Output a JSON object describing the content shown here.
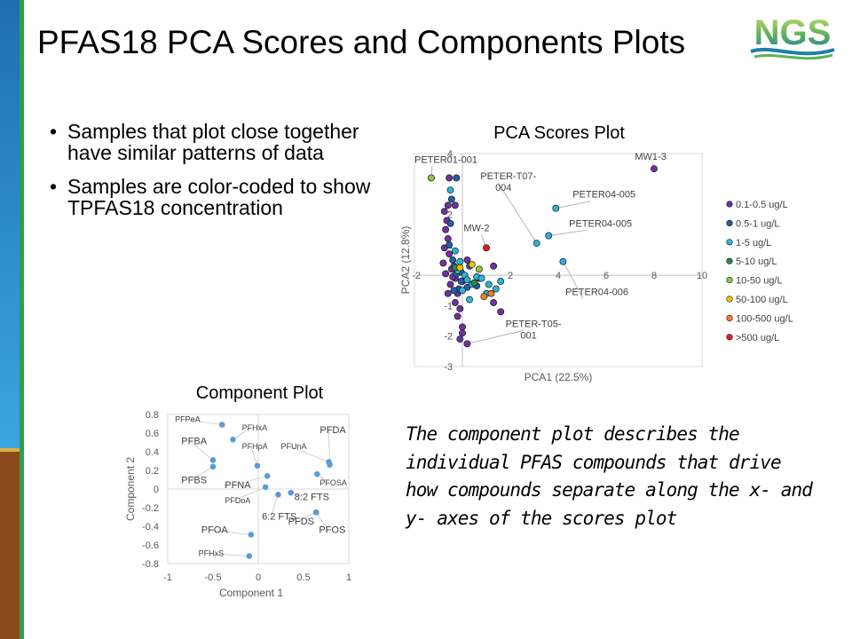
{
  "slide": {
    "title": "PFAS18 PCA Scores and Components Plots",
    "bullets": [
      "Samples that plot close together have similar patterns of data",
      "Samples are color-coded to show TPFAS18 concentration"
    ],
    "logo_text": "NGS",
    "note": "The component plot describes the individual PFAS compounds that drive how compounds separate along the x- and y- axes of the scores plot"
  },
  "chart_data": [
    {
      "type": "scatter",
      "title": "PCA Scores Plot",
      "xlabel": "PCA1 (22.5%)",
      "ylabel": "PCA2 (12.8%)",
      "xlim": [
        -2,
        10
      ],
      "ylim": [
        -3,
        4
      ],
      "xticks": [
        -2,
        2,
        4,
        6,
        8,
        10
      ],
      "yticks": [
        4,
        2,
        1,
        -1,
        -2,
        -3
      ],
      "legend_position": "right",
      "series": [
        {
          "name": "0.1-0.5 ug/L",
          "color": "#7030a0",
          "points": [
            [
              -0.55,
              3.2
            ],
            [
              -0.6,
              2.3
            ],
            [
              -0.3,
              2.3
            ],
            [
              -0.75,
              2.1
            ],
            [
              -0.65,
              1.8
            ],
            [
              -0.7,
              1.5
            ],
            [
              -0.6,
              1.2
            ],
            [
              -0.75,
              0.9
            ],
            [
              -0.55,
              0.7
            ],
            [
              -0.8,
              0.4
            ],
            [
              -0.45,
              0.2
            ],
            [
              -0.7,
              0.05
            ],
            [
              -0.3,
              -0.1
            ],
            [
              -0.5,
              -0.3
            ],
            [
              0.0,
              -0.2
            ],
            [
              -0.2,
              -0.6
            ],
            [
              -0.6,
              -0.6
            ],
            [
              -0.3,
              -0.9
            ],
            [
              -0.1,
              -1.1
            ],
            [
              -0.2,
              -1.35
            ],
            [
              0.0,
              -1.7
            ],
            [
              0.0,
              -1.9
            ],
            [
              -0.1,
              -2.1
            ],
            [
              0.2,
              -2.25
            ],
            [
              1.3,
              -0.9
            ],
            [
              1.6,
              -1.2
            ],
            [
              1.3,
              0.3
            ],
            [
              0.7,
              -0.1
            ],
            [
              8.0,
              3.5
            ],
            [
              -0.4,
              -0.05
            ],
            [
              0.2,
              0.5
            ]
          ]
        },
        {
          "name": "0.5-1 ug/L",
          "color": "#1f5fa8",
          "points": [
            [
              -0.25,
              3.2
            ],
            [
              -0.45,
              2.5
            ],
            [
              -0.5,
              1.7
            ],
            [
              -0.55,
              1.0
            ],
            [
              -0.4,
              0.5
            ],
            [
              -0.35,
              0.3
            ],
            [
              -0.25,
              0.05
            ],
            [
              -0.05,
              0.1
            ],
            [
              -0.15,
              -0.45
            ],
            [
              0.2,
              -0.4
            ],
            [
              0.6,
              -0.35
            ],
            [
              -0.35,
              -0.5
            ],
            [
              0.3,
              0.3
            ],
            [
              -0.05,
              -0.2
            ]
          ]
        },
        {
          "name": "1-5 ug/L",
          "color": "#2db2d8",
          "points": [
            [
              -0.1,
              0.45
            ],
            [
              -0.2,
              0.15
            ],
            [
              0.1,
              0.0
            ],
            [
              0.2,
              -0.15
            ],
            [
              0.4,
              -0.3
            ],
            [
              0.6,
              -0.05
            ],
            [
              0.8,
              -0.1
            ],
            [
              1.1,
              -0.3
            ],
            [
              1.4,
              -0.45
            ],
            [
              1.6,
              -0.2
            ],
            [
              1.0,
              -0.6
            ],
            [
              3.9,
              2.2
            ],
            [
              3.6,
              1.3
            ],
            [
              4.2,
              0.45
            ],
            [
              3.1,
              1.05
            ],
            [
              0.0,
              -0.5
            ],
            [
              0.3,
              -0.8
            ],
            [
              -0.3,
              0.8
            ],
            [
              -0.5,
              2.8
            ]
          ]
        },
        {
          "name": "5-10 ug/L",
          "color": "#2e8b3d",
          "points": [
            [
              -0.3,
              0.25
            ],
            [
              0.5,
              -0.25
            ]
          ]
        },
        {
          "name": "10-50 ug/L",
          "color": "#8cc63f",
          "points": [
            [
              -1.3,
              3.2
            ],
            [
              0.7,
              0.2
            ]
          ]
        },
        {
          "name": "50-100 ug/L",
          "color": "#f2c200",
          "points": [
            [
              0.4,
              0.35
            ],
            [
              -0.1,
              0.25
            ]
          ]
        },
        {
          "name": "100-500 ug/L",
          "color": "#ed7d31",
          "points": [
            [
              0.9,
              -0.7
            ],
            [
              1.2,
              -0.6
            ]
          ]
        },
        {
          "name": ">500 ug/L",
          "color": "#e02020",
          "points": [
            [
              1.0,
              0.9
            ]
          ]
        }
      ],
      "annotations": [
        {
          "text": "PETER01-001",
          "x": -2.0,
          "y": 3.7,
          "px": -1.3,
          "py": 3.2
        },
        {
          "text": "MW1-3",
          "x": 7.2,
          "y": 3.8,
          "px": 8.0,
          "py": 3.5
        },
        {
          "text": "PETER-T07-",
          "text2": "004",
          "x": 0.75,
          "y": 3.15,
          "px": 3.1,
          "py": 1.05
        },
        {
          "text": "PETER04-005",
          "x": 4.6,
          "y": 2.55,
          "px": 3.9,
          "py": 2.2
        },
        {
          "text": "PETER04-005",
          "x": 4.45,
          "y": 1.6,
          "px": 3.6,
          "py": 1.3
        },
        {
          "text": "MW-2",
          "x": 0.05,
          "y": 1.45,
          "px": 1.0,
          "py": 0.9
        },
        {
          "text": "PETER04-006",
          "x": 4.3,
          "y": -0.65,
          "px": 4.2,
          "py": 0.45
        },
        {
          "text": "PETER-T05-",
          "text2": "001",
          "x": 1.8,
          "y": -1.7,
          "px": 0.2,
          "py": -2.25
        }
      ]
    },
    {
      "type": "scatter",
      "title": "Component Plot",
      "xlabel": "Component  1",
      "ylabel": "Component  2",
      "xlim": [
        -1,
        1
      ],
      "ylim": [
        -0.8,
        0.8
      ],
      "xticks": [
        -1,
        -0.5,
        0,
        0.5,
        1
      ],
      "yticks": [
        0.8,
        0.6,
        0.4,
        0.2,
        0,
        -0.2,
        -0.4,
        -0.6,
        -0.8
      ],
      "color": "#5b9bd5",
      "points": [
        {
          "label": "PFPeA",
          "x": -0.4,
          "y": 0.69,
          "lx": -0.92,
          "ly": 0.72
        },
        {
          "label": "PFHxA",
          "x": -0.28,
          "y": 0.53,
          "lx": -0.18,
          "ly": 0.63
        },
        {
          "label": "PFBA",
          "x": -0.5,
          "y": 0.31,
          "lx": -0.85,
          "ly": 0.48
        },
        {
          "label": "PFHpA",
          "x": -0.01,
          "y": 0.25,
          "lx": -0.18,
          "ly": 0.43
        },
        {
          "label": "PFBS",
          "x": -0.5,
          "y": 0.24,
          "lx": -0.85,
          "ly": 0.06
        },
        {
          "label": "PFUnA",
          "x": 0.78,
          "y": 0.29,
          "lx": 0.25,
          "ly": 0.43
        },
        {
          "label": "PFDA",
          "x": 0.79,
          "y": 0.26,
          "lx": 0.68,
          "ly": 0.6
        },
        {
          "label": "PFNA",
          "x": 0.1,
          "y": 0.14,
          "lx": -0.37,
          "ly": 0.01
        },
        {
          "label": "PFOSA",
          "x": 0.65,
          "y": 0.16,
          "lx": 0.68,
          "ly": 0.04
        },
        {
          "label": "PFDoA",
          "x": 0.08,
          "y": 0.02,
          "lx": -0.37,
          "ly": -0.15
        },
        {
          "label": "8:2 FTS",
          "x": 0.36,
          "y": -0.04,
          "lx": 0.4,
          "ly": -0.12
        },
        {
          "label": "6:2 FTS",
          "x": 0.22,
          "y": -0.06,
          "lx": 0.04,
          "ly": -0.33
        },
        {
          "label": "PFDS",
          "x": 0.64,
          "y": -0.25,
          "lx": 0.33,
          "ly": -0.38
        },
        {
          "label": "PFOS",
          "x": 0.64,
          "y": -0.25,
          "lx": 0.67,
          "ly": -0.47
        },
        {
          "label": "PFOA",
          "x": -0.08,
          "y": -0.49,
          "lx": -0.63,
          "ly": -0.47
        },
        {
          "label": "PFHxS",
          "x": -0.1,
          "y": -0.72,
          "lx": -0.66,
          "ly": -0.72
        }
      ]
    }
  ]
}
